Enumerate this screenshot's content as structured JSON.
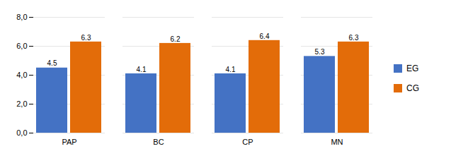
{
  "chart_data": {
    "type": "bar",
    "categories": [
      "PAP",
      "BC",
      "CP",
      "MN"
    ],
    "series": [
      {
        "name": "EG",
        "color": "#4472C4",
        "values": [
          4.5,
          4.1,
          4.1,
          5.3
        ]
      },
      {
        "name": "CG",
        "color": "#E36C09",
        "values": [
          6.3,
          6.2,
          6.4,
          6.3
        ]
      }
    ],
    "ylim": [
      0,
      8.0
    ],
    "yticks": [
      {
        "value": 0.0,
        "label": "0,0"
      },
      {
        "value": 2.0,
        "label": "2,0"
      },
      {
        "value": 4.0,
        "label": "4,0"
      },
      {
        "value": 6.0,
        "label": "6,0"
      },
      {
        "value": 8.0,
        "label": "8,0"
      }
    ],
    "grid": true,
    "legend": "right",
    "data_labels": true
  }
}
